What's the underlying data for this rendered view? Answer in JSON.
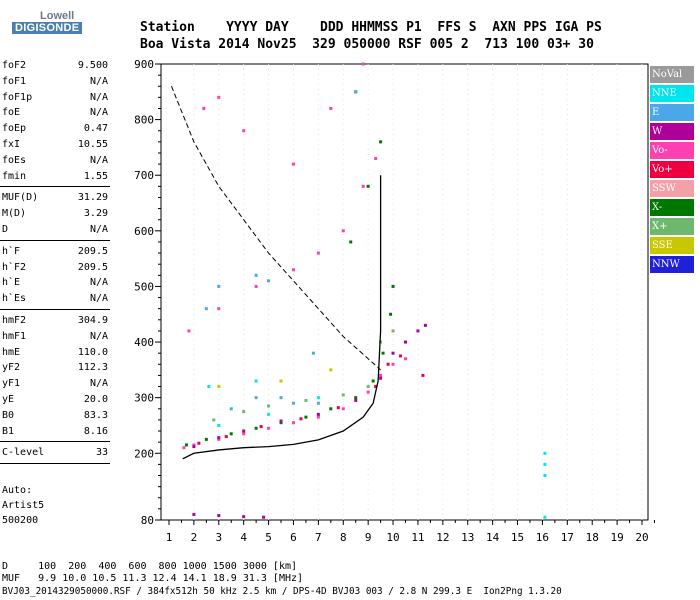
{
  "logo": {
    "line1": "Lowell",
    "line2": "DIGISONDE"
  },
  "header": {
    "line1": "Station    YYYY DAY    DDD HHMMSS P1  FFS S  AXN PPS IGA PS",
    "line2": "Boa Vista 2014 Nov25  329 050000 RSF 005 2  713 100 03+ 30"
  },
  "params": {
    "group1": [
      {
        "k": "foF2",
        "v": "9.500"
      },
      {
        "k": "foF1",
        "v": "N/A"
      },
      {
        "k": "foF1p",
        "v": "N/A"
      },
      {
        "k": "foE",
        "v": "N/A"
      },
      {
        "k": "foEp",
        "v": "0.47"
      },
      {
        "k": "fxI",
        "v": "10.55"
      },
      {
        "k": "foEs",
        "v": "N/A"
      },
      {
        "k": "fmin",
        "v": "1.55"
      }
    ],
    "group2": [
      {
        "k": "MUF(D)",
        "v": "31.29"
      },
      {
        "k": "M(D)",
        "v": "3.29"
      },
      {
        "k": "D",
        "v": "N/A"
      }
    ],
    "group3": [
      {
        "k": "h`F",
        "v": "209.5"
      },
      {
        "k": "h`F2",
        "v": "209.5"
      },
      {
        "k": "h`E",
        "v": "N/A"
      },
      {
        "k": "h`Es",
        "v": "N/A"
      }
    ],
    "group4": [
      {
        "k": "hmF2",
        "v": "304.9"
      },
      {
        "k": "hmF1",
        "v": "N/A"
      },
      {
        "k": "hmE",
        "v": "110.0"
      },
      {
        "k": "yF2",
        "v": "112.3"
      },
      {
        "k": "yF1",
        "v": "N/A"
      },
      {
        "k": "yE",
        "v": "20.0"
      },
      {
        "k": "B0",
        "v": "83.3"
      },
      {
        "k": "B1",
        "v": "8.16"
      }
    ],
    "group5": [
      {
        "k": "C-level",
        "v": "33"
      }
    ],
    "auto": {
      "line1": "Auto:",
      "line2": "Artist5",
      "line3": "500200"
    }
  },
  "legend": [
    {
      "label": "NoVal",
      "color": "#9a9a9a"
    },
    {
      "label": "NNE",
      "color": "#00e5ee"
    },
    {
      "label": "E",
      "color": "#4aa8e8"
    },
    {
      "label": "W",
      "color": "#b0009a"
    },
    {
      "label": "Vo-",
      "color": "#ff40b0"
    },
    {
      "label": "Vo+",
      "color": "#ee0040"
    },
    {
      "label": "SSW",
      "color": "#f4a0a8"
    },
    {
      "label": "X-",
      "color": "#007800"
    },
    {
      "label": "X+",
      "color": "#6db86d"
    },
    {
      "label": "SSE",
      "color": "#c8c800"
    },
    {
      "label": "NNW",
      "color": "#2020d8"
    }
  ],
  "footer": {
    "line1": "D     100  200  400  600  800 1000 1500 3000 [km]",
    "line2": "MUF   9.9 10.0 10.5 11.3 12.4 14.1 18.9 31.3 [MHz]",
    "line3": "BVJ03_2014329050000.RSF / 384fx512h 50 kHz 2.5 km / DPS-4D BVJ03 003 / 2.8 N 299.3 E  Ion2Png 1.3.20"
  },
  "chart_data": {
    "type": "scatter",
    "xlim": [
      1,
      20
    ],
    "ylim": [
      80,
      900
    ],
    "x_ticks": [
      1,
      2,
      3,
      4,
      5,
      6,
      7,
      8,
      9,
      10,
      11,
      12,
      13,
      14,
      15,
      16,
      17,
      18,
      19,
      20
    ],
    "y_ticks": [
      80,
      200,
      300,
      400,
      500,
      600,
      700,
      800,
      900
    ],
    "series": [
      {
        "name": "X-",
        "color": "#007800",
        "points": [
          [
            1.7,
            215
          ],
          [
            2.5,
            225
          ],
          [
            3.5,
            235
          ],
          [
            4.5,
            245
          ],
          [
            5.5,
            255
          ],
          [
            6.5,
            265
          ],
          [
            7.5,
            280
          ],
          [
            8.5,
            300
          ],
          [
            9.2,
            330
          ],
          [
            9.6,
            380
          ],
          [
            9.9,
            450
          ],
          [
            10,
            500
          ],
          [
            8.3,
            580
          ],
          [
            9,
            680
          ],
          [
            9.5,
            760
          ],
          [
            8.5,
            850
          ]
        ]
      },
      {
        "name": "Vo-",
        "color": "#ff40b0",
        "points": [
          [
            1.6,
            210
          ],
          [
            2,
            215
          ],
          [
            3,
            225
          ],
          [
            4,
            235
          ],
          [
            5,
            245
          ],
          [
            6,
            255
          ],
          [
            7,
            265
          ],
          [
            8,
            280
          ],
          [
            9,
            310
          ],
          [
            9.5,
            340
          ],
          [
            10,
            360
          ],
          [
            10.5,
            370
          ],
          [
            1.8,
            420
          ],
          [
            3,
            460
          ],
          [
            4.5,
            500
          ],
          [
            6,
            530
          ],
          [
            7,
            560
          ],
          [
            8,
            600
          ],
          [
            8.8,
            680
          ],
          [
            9.3,
            730
          ],
          [
            7.5,
            820
          ],
          [
            8.8,
            900
          ],
          [
            3,
            840
          ],
          [
            4,
            780
          ],
          [
            6,
            720
          ],
          [
            2.4,
            820
          ]
        ]
      },
      {
        "name": "W",
        "color": "#b0009a",
        "points": [
          [
            2,
            212
          ],
          [
            3,
            228
          ],
          [
            4,
            240
          ],
          [
            5.5,
            258
          ],
          [
            7,
            270
          ],
          [
            8.5,
            295
          ],
          [
            9.5,
            335
          ],
          [
            10,
            380
          ],
          [
            10.5,
            400
          ],
          [
            11,
            420
          ],
          [
            11.3,
            430
          ],
          [
            2,
            90
          ],
          [
            3,
            88
          ],
          [
            4,
            86
          ],
          [
            4.8,
            85
          ]
        ]
      },
      {
        "name": "Vo+",
        "color": "#ee0040",
        "points": [
          [
            2.2,
            218
          ],
          [
            3.3,
            230
          ],
          [
            4.7,
            248
          ],
          [
            6.3,
            262
          ],
          [
            7.8,
            282
          ],
          [
            9.3,
            320
          ],
          [
            9.8,
            360
          ],
          [
            10.3,
            375
          ],
          [
            11.2,
            340
          ]
        ]
      },
      {
        "name": "E",
        "color": "#4aa8e8",
        "points": [
          [
            3.5,
            280
          ],
          [
            4.5,
            300
          ],
          [
            5.5,
            300
          ],
          [
            6,
            290
          ],
          [
            7,
            290
          ],
          [
            3,
            500
          ],
          [
            4.5,
            520
          ],
          [
            5,
            510
          ],
          [
            2.5,
            460
          ],
          [
            8.5,
            850
          ],
          [
            6.8,
            380
          ]
        ]
      },
      {
        "name": "X+",
        "color": "#6db86d",
        "points": [
          [
            2.8,
            260
          ],
          [
            4,
            275
          ],
          [
            5,
            285
          ],
          [
            6.5,
            295
          ],
          [
            8,
            305
          ],
          [
            9,
            320
          ],
          [
            9.5,
            400
          ],
          [
            10,
            420
          ]
        ]
      },
      {
        "name": "NNE",
        "color": "#00e5ee",
        "points": [
          [
            3,
            250
          ],
          [
            5,
            270
          ],
          [
            7,
            300
          ],
          [
            4.5,
            330
          ],
          [
            2.6,
            320
          ],
          [
            16.1,
            85
          ],
          [
            16.1,
            200
          ],
          [
            16.1,
            180
          ],
          [
            16.1,
            160
          ]
        ]
      },
      {
        "name": "SSE",
        "color": "#c8c800",
        "points": [
          [
            3,
            320
          ],
          [
            5.5,
            330
          ],
          [
            7.5,
            350
          ]
        ]
      }
    ],
    "virtual_height_curve": [
      [
        1.55,
        190
      ],
      [
        2,
        200
      ],
      [
        3,
        206
      ],
      [
        4,
        210
      ],
      [
        5,
        212
      ],
      [
        6,
        216
      ],
      [
        7,
        224
      ],
      [
        8,
        240
      ],
      [
        8.8,
        265
      ],
      [
        9.2,
        290
      ],
      [
        9.4,
        330
      ],
      [
        9.5,
        420
      ],
      [
        9.5,
        700
      ]
    ],
    "extra_curve": [
      [
        1.1,
        860
      ],
      [
        2,
        760
      ],
      [
        3,
        680
      ],
      [
        4,
        620
      ],
      [
        5,
        560
      ],
      [
        6,
        510
      ],
      [
        7,
        460
      ],
      [
        8,
        410
      ],
      [
        9,
        370
      ],
      [
        9.5,
        350
      ]
    ]
  }
}
